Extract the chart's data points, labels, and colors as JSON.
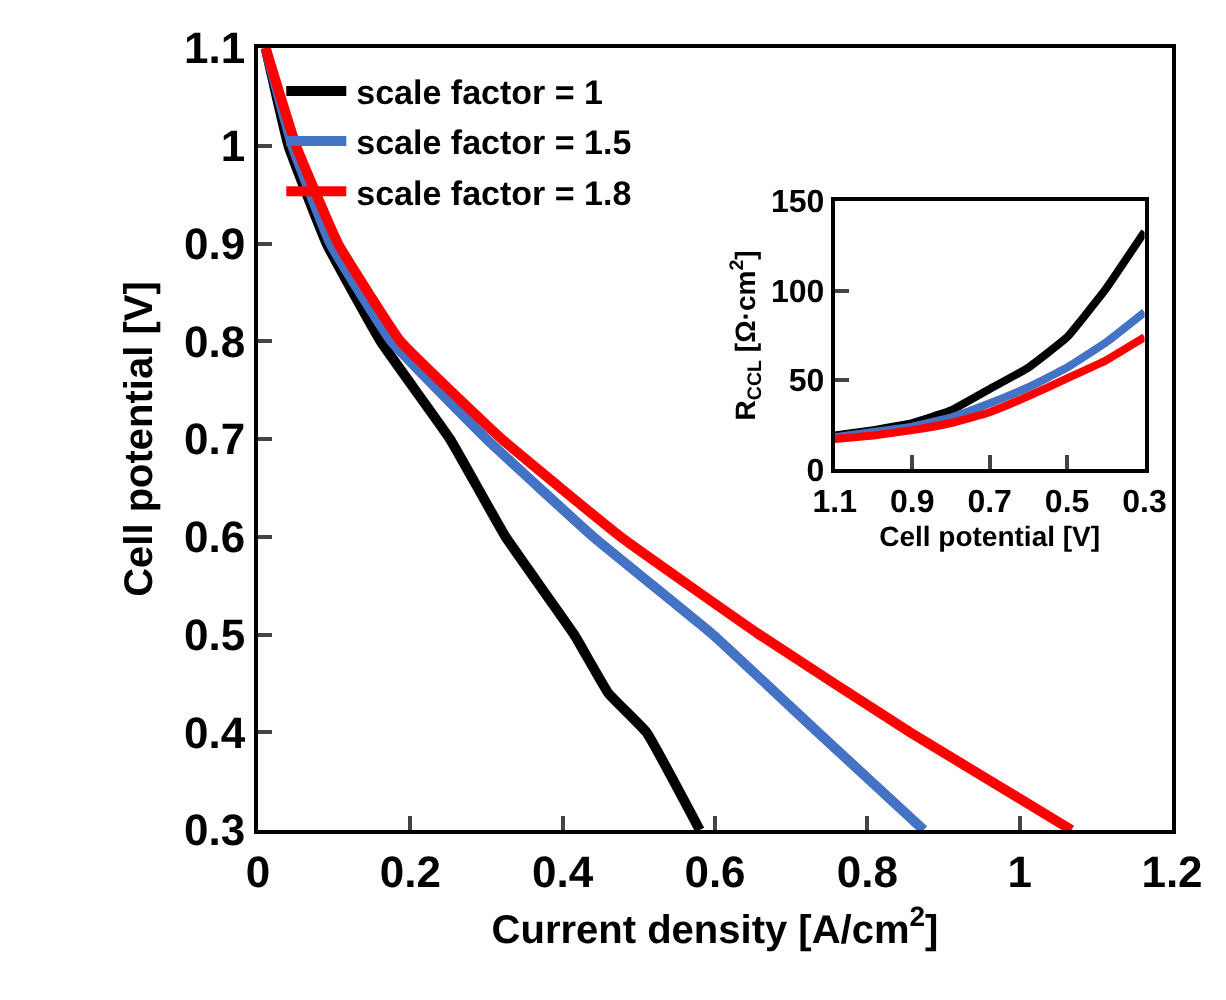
{
  "chart_data": [
    {
      "type": "line",
      "xlabel": "Current density [A/cm$^{2}$]",
      "ylabel": "Cell potential [V]",
      "xlim": [
        0,
        1.2
      ],
      "ylim": [
        0.3,
        1.1
      ],
      "xticks": [
        0,
        0.2,
        0.4,
        0.6,
        0.8,
        1,
        1.2
      ],
      "yticks": [
        0.3,
        0.4,
        0.5,
        0.6,
        0.7,
        0.8,
        0.9,
        1,
        1.1
      ],
      "legend": "top left",
      "marker": "none",
      "line_style": "solid",
      "series": [
        {
          "name": "scale factor = 1",
          "color": "#000000",
          "x": [
            0.01,
            0.04,
            0.09,
            0.161,
            0.252,
            0.325,
            0.415,
            0.46,
            0.51,
            0.58
          ],
          "values": [
            1.1,
            1.0,
            0.9,
            0.8,
            0.7,
            0.6,
            0.5,
            0.44,
            0.4,
            0.3
          ]
        },
        {
          "name": "scale factor = 1.5",
          "color": "#4472c4",
          "x": [
            0.01,
            0.045,
            0.095,
            0.175,
            0.3,
            0.44,
            0.597,
            0.735,
            0.874
          ],
          "values": [
            1.1,
            1.0,
            0.9,
            0.8,
            0.7,
            0.6,
            0.5,
            0.4,
            0.3
          ]
        },
        {
          "name": "scale factor = 1.8",
          "color": "#ff0000",
          "x": [
            0.01,
            0.05,
            0.105,
            0.187,
            0.32,
            0.476,
            0.658,
            0.856,
            1.068
          ],
          "values": [
            1.1,
            1.0,
            0.9,
            0.8,
            0.7,
            0.6,
            0.5,
            0.4,
            0.3
          ]
        }
      ]
    },
    {
      "type": "line",
      "xlabel": "Cell potential [V]",
      "ylabel": "R$_{CCL}$ [Ω·cm$^{2}$]",
      "xlim": [
        1.1,
        0.3
      ],
      "ylim": [
        0,
        150
      ],
      "xticks": [
        1.1,
        0.9,
        0.7,
        0.5,
        0.3
      ],
      "yticks": [
        0,
        50,
        100,
        150
      ],
      "marker": "none",
      "line_style": "solid",
      "series": [
        {
          "color": "#000000",
          "x": [
            1.1,
            1.0,
            0.9,
            0.8,
            0.7,
            0.6,
            0.5,
            0.4,
            0.3
          ],
          "values": [
            19,
            22,
            26,
            33,
            45,
            57,
            74,
            101,
            133
          ]
        },
        {
          "color": "#4472c4",
          "x": [
            1.1,
            1.0,
            0.9,
            0.8,
            0.7,
            0.6,
            0.5,
            0.4,
            0.3
          ],
          "values": [
            18,
            21,
            24,
            29,
            37,
            46,
            57,
            71,
            88
          ]
        },
        {
          "color": "#ff0000",
          "x": [
            1.1,
            1.0,
            0.9,
            0.8,
            0.7,
            0.6,
            0.5,
            0.4,
            0.3
          ],
          "values": [
            17,
            19,
            22,
            26,
            32,
            41,
            51,
            61,
            74
          ]
        }
      ]
    }
  ]
}
